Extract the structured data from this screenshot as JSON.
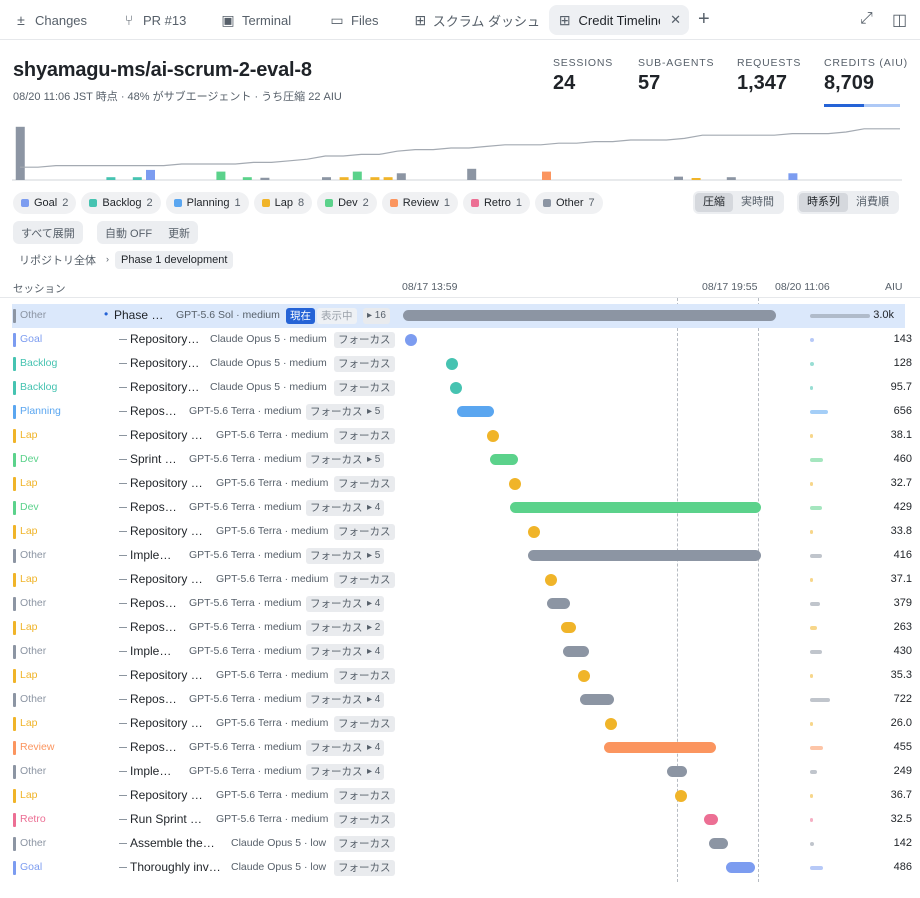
{
  "tabs": [
    {
      "label": "Changes",
      "icon": "plus-minus-icon"
    },
    {
      "label": "PR #13",
      "icon": "git-branch-icon"
    },
    {
      "label": "Terminal",
      "icon": "terminal-icon"
    },
    {
      "label": "Files",
      "icon": "folder-icon"
    },
    {
      "label": "スクラム ダッシュ",
      "icon": "dashboard-icon"
    },
    {
      "label": "Credit Timeline",
      "icon": "dashboard-icon"
    }
  ],
  "header": {
    "title": "shyamagu-ms/ai-scrum-2-eval-8",
    "subtitle": "08/20 11:06 JST 時点 · 48% がサブエージェント · うち圧縮 22 AIU"
  },
  "stats": [
    {
      "label": "SESSIONS",
      "value": "24"
    },
    {
      "label": "SUB-AGENTS",
      "value": "57"
    },
    {
      "label": "REQUESTS",
      "value": "1,347"
    },
    {
      "label": "CREDITS (AIU)",
      "value": "8,709"
    }
  ],
  "colors": {
    "Goal": "#7c9cf0",
    "Backlog": "#46c3b1",
    "Planning": "#5aa6f0",
    "Lap": "#f0b429",
    "Dev": "#5bd28b",
    "Review": "#fb955f",
    "Retro": "#ec6f94",
    "Other": "#8c95a3"
  },
  "filters": [
    {
      "label": "Goal",
      "count": "2"
    },
    {
      "label": "Backlog",
      "count": "2"
    },
    {
      "label": "Planning",
      "count": "1"
    },
    {
      "label": "Lap",
      "count": "8"
    },
    {
      "label": "Dev",
      "count": "2"
    },
    {
      "label": "Review",
      "count": "1"
    },
    {
      "label": "Retro",
      "count": "1"
    },
    {
      "label": "Other",
      "count": "7"
    }
  ],
  "mode_toggle": {
    "a": "圧縮",
    "b": "実時間"
  },
  "sort_toggle": {
    "a": "時系列",
    "b": "消費順"
  },
  "controls": {
    "expand_all": "すべて展開",
    "auto": "自動 OFF",
    "refresh": "更新"
  },
  "breadcrumb": {
    "root": "リポジトリ全体",
    "current": "Phase 1 development"
  },
  "columns": {
    "session": "セッション",
    "t1": "08/17 13:59",
    "t2": "08/17 19:55",
    "t3": "08/20 11:06",
    "aiu": "AIU"
  },
  "spark_line": [
    8,
    8,
    9,
    9,
    9,
    9,
    9,
    9,
    9,
    10,
    10,
    10,
    10,
    11,
    11,
    12,
    13,
    15,
    15,
    16,
    16,
    18,
    19,
    19,
    20,
    20,
    21,
    22,
    22,
    22,
    23,
    23,
    24,
    24,
    25,
    25,
    25,
    26,
    28,
    28,
    28,
    28,
    28,
    29,
    29,
    29,
    30,
    32,
    32,
    32
  ],
  "spark_bars": [
    {
      "t": 0.2,
      "c": "Other",
      "v": 0.95
    },
    {
      "t": 10.5,
      "c": "Backlog",
      "v": 0.05
    },
    {
      "t": 13.5,
      "c": "Backlog",
      "v": 0.05
    },
    {
      "t": 15,
      "c": "Goal",
      "v": 0.18
    },
    {
      "t": 23,
      "c": "Dev",
      "v": 0.15
    },
    {
      "t": 26,
      "c": "Dev",
      "v": 0.05
    },
    {
      "t": 28,
      "c": "Other",
      "v": 0.04
    },
    {
      "t": 35,
      "c": "Other",
      "v": 0.05
    },
    {
      "t": 37,
      "c": "Lap",
      "v": 0.05
    },
    {
      "t": 38.5,
      "c": "Dev",
      "v": 0.15
    },
    {
      "t": 40.5,
      "c": "Lap",
      "v": 0.05
    },
    {
      "t": 42,
      "c": "Lap",
      "v": 0.05
    },
    {
      "t": 43.5,
      "c": "Other",
      "v": 0.12
    },
    {
      "t": 51.5,
      "c": "Other",
      "v": 0.2
    },
    {
      "t": 60,
      "c": "Review",
      "v": 0.15
    },
    {
      "t": 75,
      "c": "Other",
      "v": 0.06
    },
    {
      "t": 77,
      "c": "Lap",
      "v": 0.03
    },
    {
      "t": 81,
      "c": "Other",
      "v": 0.05
    },
    {
      "t": 88,
      "c": "Goal",
      "v": 0.12
    }
  ],
  "sessions": [
    {
      "cat": "Other",
      "name": "Phase …",
      "model": "GPT-5.6 Sol · medium",
      "badge_now": "現在",
      "badge_show": "表示中",
      "count": "▸ 16",
      "aiu": "3.0k",
      "start": 0,
      "end": 1,
      "dot": false,
      "sel": true
    },
    {
      "cat": "Goal",
      "name": "Repository…",
      "model": "Claude Opus 5 · medium",
      "focus": "フォーカス",
      "aiu": "143",
      "start": 0.005,
      "end": 0.028,
      "dot": true
    },
    {
      "cat": "Backlog",
      "name": "Repository…",
      "model": "Claude Opus 5 · medium",
      "focus": "フォーカス",
      "aiu": "128",
      "start": 0.115,
      "end": 0.145,
      "dot": true
    },
    {
      "cat": "Backlog",
      "name": "Repository…",
      "model": "Claude Opus 5 · medium",
      "focus": "フォーカス",
      "aiu": "95.7",
      "start": 0.125,
      "end": 0.158,
      "dot": true
    },
    {
      "cat": "Planning",
      "name": "Repos…",
      "model": "GPT-5.6 Terra · medium",
      "focus": "フォーカス",
      "count": "▸ 5",
      "aiu": "656",
      "start": 0.145,
      "end": 0.245,
      "dot": false
    },
    {
      "cat": "Lap",
      "name": "Repository …",
      "model": "GPT-5.6 Terra · medium",
      "focus": "フォーカス",
      "aiu": "38.1",
      "start": 0.226,
      "end": 0.255,
      "dot": true
    },
    {
      "cat": "Dev",
      "name": "Sprint …",
      "model": "GPT-5.6 Terra · medium",
      "focus": "フォーカス",
      "count": "▸ 5",
      "aiu": "460",
      "start": 0.232,
      "end": 0.307,
      "dot": false
    },
    {
      "cat": "Lap",
      "name": "Repository …",
      "model": "GPT-5.6 Terra · medium",
      "focus": "フォーカス",
      "aiu": "32.7",
      "start": 0.283,
      "end": 0.312,
      "dot": true
    },
    {
      "cat": "Dev",
      "name": "Repos…",
      "model": "GPT-5.6 Terra · medium",
      "focus": "フォーカス",
      "count": "▸ 4",
      "aiu": "429",
      "start": 0.287,
      "end": 0.96,
      "dot": false
    },
    {
      "cat": "Lap",
      "name": "Repository …",
      "model": "GPT-5.6 Terra · medium",
      "focus": "フォーカス",
      "aiu": "33.8",
      "start": 0.334,
      "end": 0.363,
      "dot": true
    },
    {
      "cat": "Other",
      "name": "Imple…",
      "model": "GPT-5.6 Terra · medium",
      "focus": "フォーカス",
      "count": "▸ 5",
      "aiu": "416",
      "start": 0.335,
      "end": 0.96,
      "dot": false
    },
    {
      "cat": "Lap",
      "name": "Repository …",
      "model": "GPT-5.6 Terra · medium",
      "focus": "フォーカス",
      "aiu": "37.1",
      "start": 0.381,
      "end": 0.41,
      "dot": true
    },
    {
      "cat": "Other",
      "name": "Repos…",
      "model": "GPT-5.6 Terra · medium",
      "focus": "フォーカス",
      "count": "▸ 4",
      "aiu": "379",
      "start": 0.386,
      "end": 0.447,
      "dot": false
    },
    {
      "cat": "Lap",
      "name": "Repos…",
      "model": "GPT-5.6 Terra · medium",
      "focus": "フォーカス",
      "count": "▸ 2",
      "aiu": "263",
      "start": 0.423,
      "end": 0.463,
      "dot": false
    },
    {
      "cat": "Other",
      "name": "Imple…",
      "model": "GPT-5.6 Terra · medium",
      "focus": "フォーカス",
      "count": "▸ 4",
      "aiu": "430",
      "start": 0.43,
      "end": 0.5,
      "dot": false
    },
    {
      "cat": "Lap",
      "name": "Repository …",
      "model": "GPT-5.6 Terra · medium",
      "focus": "フォーカス",
      "aiu": "35.3",
      "start": 0.47,
      "end": 0.499,
      "dot": true
    },
    {
      "cat": "Other",
      "name": "Repos…",
      "model": "GPT-5.6 Terra · medium",
      "focus": "フォーカス",
      "count": "▸ 4",
      "aiu": "722",
      "start": 0.474,
      "end": 0.567,
      "dot": false
    },
    {
      "cat": "Lap",
      "name": "Repository …",
      "model": "GPT-5.6 Terra · medium",
      "focus": "フォーカス",
      "aiu": "26.0",
      "start": 0.542,
      "end": 0.571,
      "dot": true
    },
    {
      "cat": "Review",
      "name": "Repos…",
      "model": "GPT-5.6 Terra · medium",
      "focus": "フォーカス",
      "count": "▸ 4",
      "aiu": "455",
      "start": 0.54,
      "end": 0.84,
      "dot": false
    },
    {
      "cat": "Other",
      "name": "Imple…",
      "model": "GPT-5.6 Terra · medium",
      "focus": "フォーカス",
      "count": "▸ 4",
      "aiu": "249",
      "start": 0.708,
      "end": 0.761,
      "dot": false
    },
    {
      "cat": "Lap",
      "name": "Repository …",
      "model": "GPT-5.6 Terra · medium",
      "focus": "フォーカス",
      "aiu": "36.7",
      "start": 0.73,
      "end": 0.759,
      "dot": true
    },
    {
      "cat": "Retro",
      "name": "Run Sprint …",
      "model": "GPT-5.6 Terra · medium",
      "focus": "フォーカス",
      "aiu": "32.5",
      "start": 0.807,
      "end": 0.845,
      "dot": false
    },
    {
      "cat": "Other",
      "name": "Assemble the…",
      "model": "Claude Opus 5 · low",
      "focus": "フォーカス",
      "aiu": "142",
      "start": 0.82,
      "end": 0.87,
      "dot": false
    },
    {
      "cat": "Goal",
      "name": "Thoroughly inv…",
      "model": "Claude Opus 5 · low",
      "focus": "フォーカス",
      "aiu": "486",
      "start": 0.865,
      "end": 0.945,
      "dot": false
    }
  ]
}
